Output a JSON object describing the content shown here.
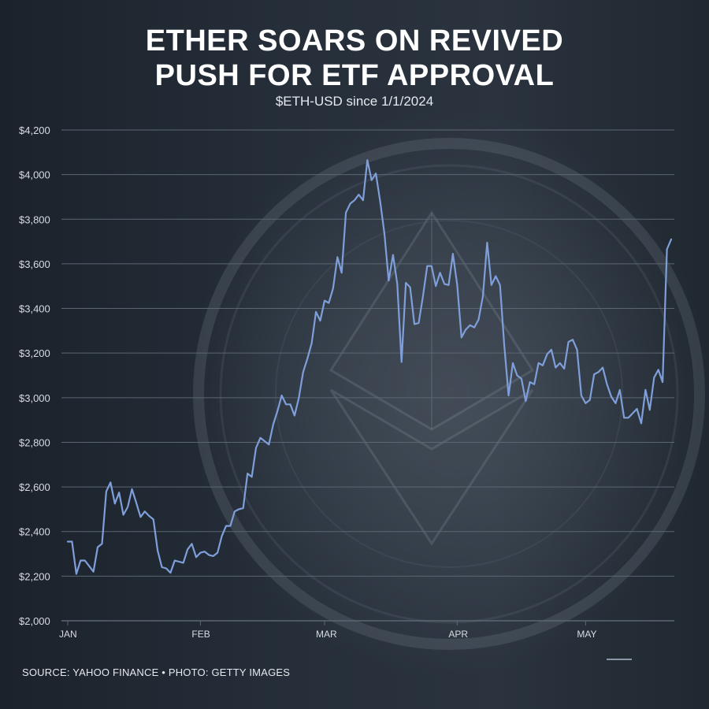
{
  "title_line1": "ETHER SOARS ON REVIVED",
  "title_line2": "PUSH FOR ETF APPROVAL",
  "subtitle": "$ETH-USD since 1/1/2024",
  "source": "SOURCE: YAHOO FINANCE • PHOTO: GETTY IMAGES",
  "colors": {
    "line": "#7f9fda",
    "grid": "#5c6672",
    "background": "#1e2630"
  },
  "chart_data": {
    "type": "line",
    "title": "ETHER SOARS ON REVIVED PUSH FOR ETF APPROVAL",
    "subtitle": "$ETH-USD since 1/1/2024",
    "xlabel": "",
    "ylabel": "",
    "ylim": [
      2000,
      4200
    ],
    "yticks": [
      2000,
      2200,
      2400,
      2600,
      2800,
      3000,
      3200,
      3400,
      3600,
      3800,
      4000,
      4200
    ],
    "ytick_labels": [
      "$2,000",
      "$2,200",
      "$2,400",
      "$2,600",
      "$2,800",
      "$3,000",
      "$3,200",
      "$3,400",
      "$3,600",
      "$3,800",
      "$4,000",
      "$4,200"
    ],
    "xticks": [
      {
        "label": "JAN",
        "date": "2024-01-01"
      },
      {
        "label": "FEB",
        "date": "2024-02-01"
      },
      {
        "label": "MAR",
        "date": "2024-03-01"
      },
      {
        "label": "APR",
        "date": "2024-04-01"
      },
      {
        "label": "MAY",
        "date": "2024-05-01"
      }
    ],
    "grid": true,
    "series": [
      {
        "values": [
          [
            "2024-01-01",
            2355
          ],
          [
            "2024-01-02",
            2355
          ],
          [
            "2024-01-03",
            2210
          ],
          [
            "2024-01-04",
            2270
          ],
          [
            "2024-01-05",
            2270
          ],
          [
            "2024-01-06",
            2245
          ],
          [
            "2024-01-07",
            2220
          ],
          [
            "2024-01-08",
            2330
          ],
          [
            "2024-01-09",
            2345
          ],
          [
            "2024-01-10",
            2580
          ],
          [
            "2024-01-11",
            2620
          ],
          [
            "2024-01-12",
            2525
          ],
          [
            "2024-01-13",
            2575
          ],
          [
            "2024-01-14",
            2475
          ],
          [
            "2024-01-15",
            2510
          ],
          [
            "2024-01-16",
            2590
          ],
          [
            "2024-01-17",
            2530
          ],
          [
            "2024-01-18",
            2465
          ],
          [
            "2024-01-19",
            2490
          ],
          [
            "2024-01-20",
            2470
          ],
          [
            "2024-01-21",
            2455
          ],
          [
            "2024-01-22",
            2315
          ],
          [
            "2024-01-23",
            2240
          ],
          [
            "2024-01-24",
            2235
          ],
          [
            "2024-01-25",
            2215
          ],
          [
            "2024-01-26",
            2270
          ],
          [
            "2024-01-27",
            2265
          ],
          [
            "2024-01-28",
            2260
          ],
          [
            "2024-01-29",
            2320
          ],
          [
            "2024-01-30",
            2345
          ],
          [
            "2024-01-31",
            2285
          ],
          [
            "2024-02-01",
            2305
          ],
          [
            "2024-02-02",
            2310
          ],
          [
            "2024-02-03",
            2295
          ],
          [
            "2024-02-04",
            2290
          ],
          [
            "2024-02-05",
            2305
          ],
          [
            "2024-02-06",
            2380
          ],
          [
            "2024-02-07",
            2425
          ],
          [
            "2024-02-08",
            2425
          ],
          [
            "2024-02-09",
            2490
          ],
          [
            "2024-02-10",
            2500
          ],
          [
            "2024-02-11",
            2505
          ],
          [
            "2024-02-12",
            2660
          ],
          [
            "2024-02-13",
            2645
          ],
          [
            "2024-02-14",
            2775
          ],
          [
            "2024-02-15",
            2820
          ],
          [
            "2024-02-16",
            2805
          ],
          [
            "2024-02-17",
            2790
          ],
          [
            "2024-02-18",
            2880
          ],
          [
            "2024-02-19",
            2940
          ],
          [
            "2024-02-20",
            3010
          ],
          [
            "2024-02-21",
            2970
          ],
          [
            "2024-02-22",
            2970
          ],
          [
            "2024-02-23",
            2920
          ],
          [
            "2024-02-24",
            3000
          ],
          [
            "2024-02-25",
            3115
          ],
          [
            "2024-02-26",
            3175
          ],
          [
            "2024-02-27",
            3245
          ],
          [
            "2024-02-28",
            3385
          ],
          [
            "2024-02-29",
            3345
          ],
          [
            "2024-03-01",
            3435
          ],
          [
            "2024-03-02",
            3425
          ],
          [
            "2024-03-03",
            3490
          ],
          [
            "2024-03-04",
            3630
          ],
          [
            "2024-03-05",
            3560
          ],
          [
            "2024-03-06",
            3830
          ],
          [
            "2024-03-07",
            3870
          ],
          [
            "2024-03-08",
            3885
          ],
          [
            "2024-03-09",
            3910
          ],
          [
            "2024-03-10",
            3885
          ],
          [
            "2024-03-11",
            4065
          ],
          [
            "2024-03-12",
            3975
          ],
          [
            "2024-03-13",
            4005
          ],
          [
            "2024-03-14",
            3880
          ],
          [
            "2024-03-15",
            3735
          ],
          [
            "2024-03-16",
            3525
          ],
          [
            "2024-03-17",
            3640
          ],
          [
            "2024-03-18",
            3510
          ],
          [
            "2024-03-19",
            3160
          ],
          [
            "2024-03-20",
            3515
          ],
          [
            "2024-03-21",
            3495
          ],
          [
            "2024-03-22",
            3330
          ],
          [
            "2024-03-23",
            3335
          ],
          [
            "2024-03-24",
            3455
          ],
          [
            "2024-03-25",
            3590
          ],
          [
            "2024-03-26",
            3590
          ],
          [
            "2024-03-27",
            3500
          ],
          [
            "2024-03-28",
            3560
          ],
          [
            "2024-03-29",
            3510
          ],
          [
            "2024-03-30",
            3505
          ],
          [
            "2024-03-31",
            3645
          ],
          [
            "2024-04-01",
            3505
          ],
          [
            "2024-04-02",
            3270
          ],
          [
            "2024-04-03",
            3305
          ],
          [
            "2024-04-04",
            3325
          ],
          [
            "2024-04-05",
            3315
          ],
          [
            "2024-04-06",
            3350
          ],
          [
            "2024-04-07",
            3455
          ],
          [
            "2024-04-08",
            3695
          ],
          [
            "2024-04-09",
            3505
          ],
          [
            "2024-04-10",
            3545
          ],
          [
            "2024-04-11",
            3505
          ],
          [
            "2024-04-12",
            3235
          ],
          [
            "2024-04-13",
            3010
          ],
          [
            "2024-04-14",
            3155
          ],
          [
            "2024-04-15",
            3100
          ],
          [
            "2024-04-16",
            3085
          ],
          [
            "2024-04-17",
            2985
          ],
          [
            "2024-04-18",
            3070
          ],
          [
            "2024-04-19",
            3060
          ],
          [
            "2024-04-20",
            3155
          ],
          [
            "2024-04-21",
            3145
          ],
          [
            "2024-04-22",
            3195
          ],
          [
            "2024-04-23",
            3215
          ],
          [
            "2024-04-24",
            3135
          ],
          [
            "2024-04-25",
            3155
          ],
          [
            "2024-04-26",
            3130
          ],
          [
            "2024-04-27",
            3250
          ],
          [
            "2024-04-28",
            3260
          ],
          [
            "2024-04-29",
            3215
          ],
          [
            "2024-04-30",
            3010
          ],
          [
            "2024-05-01",
            2975
          ],
          [
            "2024-05-02",
            2990
          ],
          [
            "2024-05-03",
            3105
          ],
          [
            "2024-05-04",
            3115
          ],
          [
            "2024-05-05",
            3135
          ],
          [
            "2024-05-06",
            3060
          ],
          [
            "2024-05-07",
            3005
          ],
          [
            "2024-05-08",
            2975
          ],
          [
            "2024-05-09",
            3035
          ],
          [
            "2024-05-10",
            2910
          ],
          [
            "2024-05-11",
            2910
          ],
          [
            "2024-05-12",
            2930
          ],
          [
            "2024-05-13",
            2950
          ],
          [
            "2024-05-14",
            2885
          ],
          [
            "2024-05-15",
            3035
          ],
          [
            "2024-05-16",
            2945
          ],
          [
            "2024-05-17",
            3090
          ],
          [
            "2024-05-18",
            3125
          ],
          [
            "2024-05-19",
            3070
          ],
          [
            "2024-05-20",
            3665
          ],
          [
            "2024-05-21",
            3710
          ]
        ]
      }
    ]
  }
}
